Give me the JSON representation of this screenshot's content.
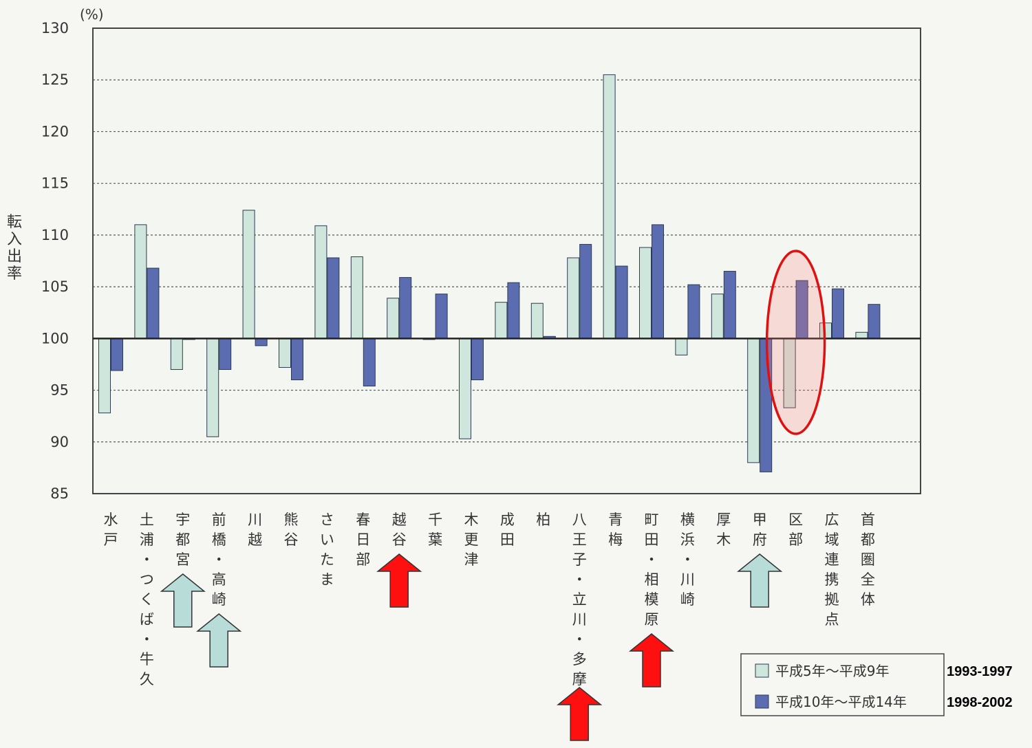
{
  "chart_data": {
    "type": "bar",
    "ylabel": "転入出率",
    "yunit": "(%)",
    "ylim": [
      85,
      130
    ],
    "yticks": [
      85,
      90,
      95,
      100,
      105,
      110,
      115,
      120,
      125,
      130
    ],
    "baseline": 100,
    "grid": true,
    "legend_position": "bottom-right",
    "categories": [
      "水戸",
      "土浦・つくば・牛久",
      "宇都宮",
      "前橋・高崎",
      "川越",
      "熊谷",
      "さいたま",
      "春日部",
      "越谷",
      "千葉",
      "木更津",
      "成田",
      "柏",
      "八王子・立川・多摩",
      "青梅",
      "町田・相模原",
      "横浜・川崎",
      "厚木",
      "甲府",
      "区部",
      "広域連携拠点",
      "首都圏全体"
    ],
    "series": [
      {
        "name": "平成5年～平成9年",
        "year_label": "1993-1997",
        "color": "#cfe6dc",
        "values": [
          92.8,
          111.0,
          97.0,
          90.5,
          112.4,
          97.2,
          110.9,
          107.9,
          103.9,
          100.0,
          90.3,
          103.5,
          103.4,
          107.8,
          125.5,
          108.8,
          98.4,
          104.3,
          88.0,
          93.3,
          101.5,
          100.6
        ]
      },
      {
        "name": "平成10年～平成14年",
        "year_label": "1998-2002",
        "color": "#5b6db0",
        "values": [
          96.9,
          106.8,
          100.0,
          97.0,
          99.3,
          96.0,
          107.8,
          95.4,
          105.9,
          104.3,
          96.0,
          105.4,
          100.2,
          109.1,
          107.0,
          111.0,
          105.2,
          106.5,
          87.1,
          105.6,
          104.8,
          103.3
        ]
      }
    ],
    "up_arrows_light": [
      "宇都宮",
      "前橋・高崎",
      "甲府"
    ],
    "up_arrows_red": [
      "越谷",
      "八王子・立川・多摩",
      "町田・相模原"
    ],
    "highlighted_category": "区部"
  }
}
